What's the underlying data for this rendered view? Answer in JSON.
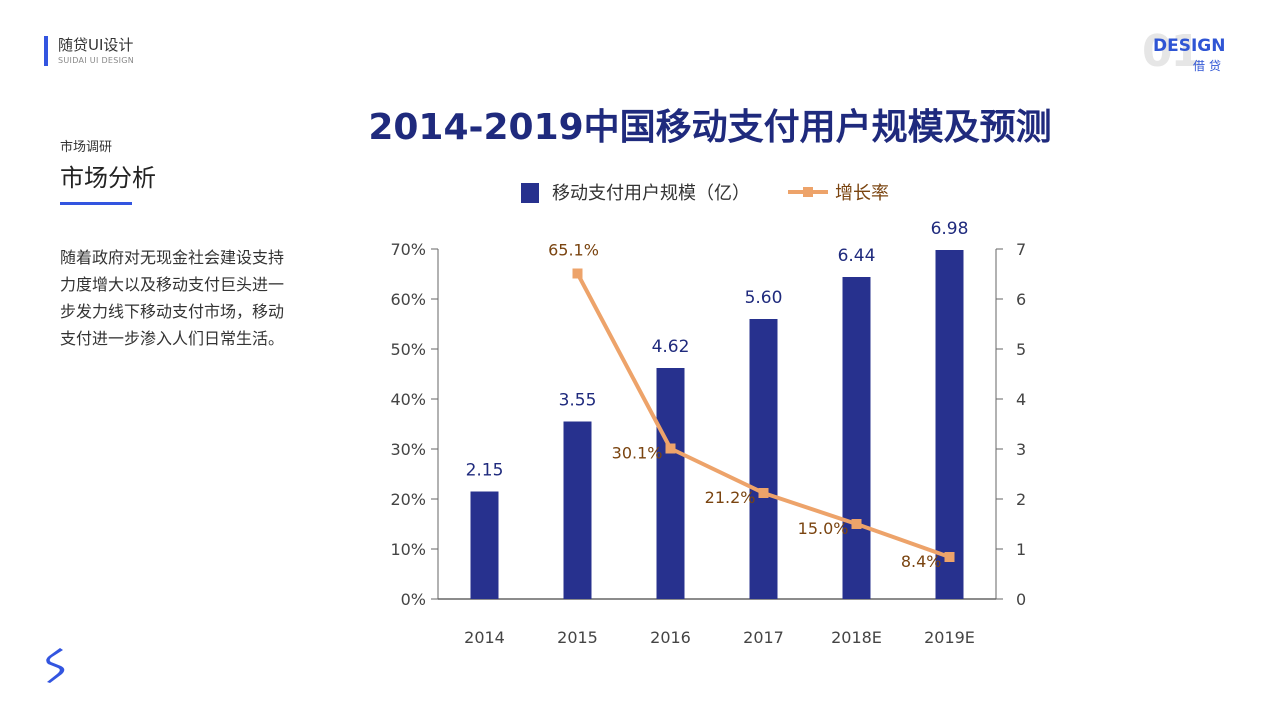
{
  "header": {
    "brand_title": "随贷UI设计",
    "brand_sub": "SUIDAI UI DESIGN",
    "page_number": "01",
    "design_word": "DESIGN",
    "design_cn": "借贷"
  },
  "section": {
    "kicker": "市场调研",
    "title": "市场分析",
    "body": "随着政府对无现金社会建设支持力度增大以及移动支付巨头进一步发力线下移动支付市场，移动支付进一步渗入人们日常生活。"
  },
  "colors": {
    "accent": "#3355e0",
    "bar": "#27318e",
    "line": "#eda36a",
    "line_label": "#7a4410",
    "title": "#1f2a7d"
  },
  "chart_data": {
    "type": "bar",
    "title": "2014-2019中国移动支付用户规模及预测",
    "categories": [
      "2014",
      "2015",
      "2016",
      "2017",
      "2018E",
      "2019E"
    ],
    "series": [
      {
        "name": "移动支付用户规模（亿）",
        "type": "bar",
        "axis": "right",
        "values": [
          2.15,
          3.55,
          4.62,
          5.6,
          6.44,
          6.98
        ],
        "labels": [
          "2.15",
          "3.55",
          "4.62",
          "5.60",
          "6.44",
          "6.98"
        ]
      },
      {
        "name": "增长率",
        "type": "line",
        "axis": "left",
        "values": [
          null,
          65.1,
          30.1,
          21.2,
          15.0,
          8.4
        ],
        "labels": [
          "",
          "65.1%",
          "30.1%",
          "21.2%",
          "15.0%",
          "8.4%"
        ]
      }
    ],
    "y_left": {
      "ylim": [
        0,
        70
      ],
      "ticks": [
        "0%",
        "10%",
        "20%",
        "30%",
        "40%",
        "50%",
        "60%",
        "70%"
      ]
    },
    "y_right": {
      "ylim": [
        0,
        7
      ],
      "ticks": [
        "0",
        "1",
        "2",
        "3",
        "4",
        "5",
        "6",
        "7"
      ]
    },
    "legend_position": "top-center"
  }
}
